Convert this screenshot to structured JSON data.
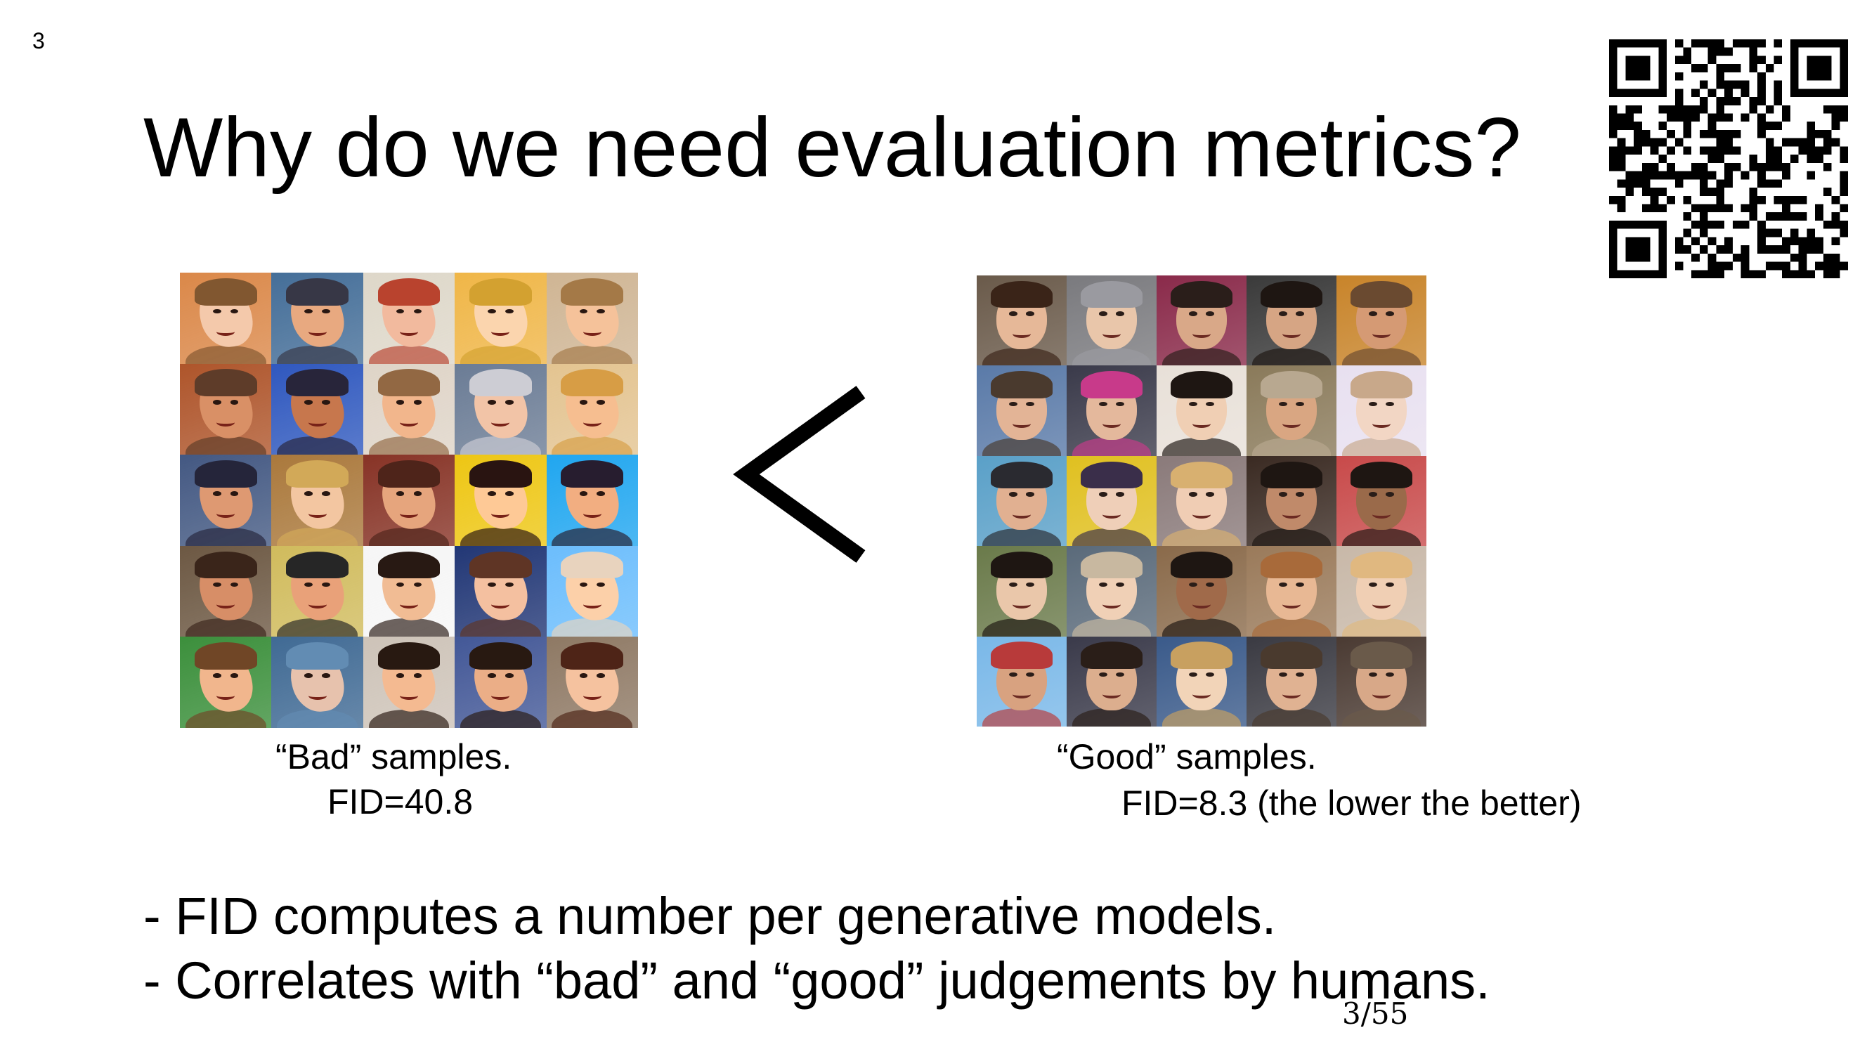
{
  "slide_number": "3",
  "title": "Why do we need evaluation metrics?",
  "comparison_symbol": "<",
  "bad_samples": {
    "caption_line1": "“Bad” samples.",
    "caption_line2": "FID=40.8"
  },
  "good_samples": {
    "caption_line1": "“Good” samples.",
    "caption_line2": "FID=8.3 (the lower the better)"
  },
  "bullets": [
    "- FID computes a number per generative models.",
    "- Correlates with “bad” and “good” judgements by humans."
  ],
  "page_counter": "3/55",
  "icons": {
    "qr": "qr-code-icon",
    "less_than": "less-than-symbol"
  },
  "colors": {
    "text": "#000000",
    "background": "#ffffff"
  },
  "bad_face_palette": [
    [
      "#e8c7b0",
      "#7a5a3c",
      "#c98a5a"
    ],
    [
      "#d9a98a",
      "#3b3b46",
      "#4e6e8e"
    ],
    [
      "#e4b9a4",
      "#a44a3a",
      "#d8d3c8"
    ],
    [
      "#efd2b4",
      "#c6a04a",
      "#e0b460"
    ],
    [
      "#e7c0a2",
      "#9b7a54",
      "#c7b39a"
    ],
    [
      "#c99272",
      "#5a4032",
      "#9e5a3a"
    ],
    [
      "#b77a5a",
      "#2c2a3a",
      "#3b5aa8"
    ],
    [
      "#e3b595",
      "#8a6a4e",
      "#d8d0c6"
    ],
    [
      "#e5c2ac",
      "#c9c9cf",
      "#6f7c8f"
    ],
    [
      "#e7bd9a",
      "#c99d5a",
      "#d9c19a"
    ],
    [
      "#cf9a7c",
      "#2a2a3a",
      "#4a5a7a"
    ],
    [
      "#e6c4a8",
      "#c7a86a",
      "#a07a4c"
    ],
    [
      "#d7a587",
      "#4a2a22",
      "#7a3a30"
    ],
    [
      "#efc7a0",
      "#2a1a18",
      "#e0c23a"
    ],
    [
      "#e2ae8c",
      "#2a2230",
      "#3aa0d8"
    ],
    [
      "#c79072",
      "#3a2a22",
      "#6a5a4a"
    ],
    [
      "#d9a283",
      "#2a2a2a",
      "#c8b870"
    ],
    [
      "#e3bb9c",
      "#2a1e1a",
      "#f0f0f0"
    ],
    [
      "#e6bfa6",
      "#5a3a2e",
      "#2a3a6a"
    ],
    [
      "#efcdb0",
      "#e0d0c0",
      "#7ab8e8"
    ],
    [
      "#e2b596",
      "#6a4a32",
      "#4a8a4a"
    ],
    [
      "#dcc0b0",
      "#6a8aa8",
      "#4a6a8a"
    ],
    [
      "#e5b99a",
      "#2a1e18",
      "#c8c0b8"
    ],
    [
      "#dcae90",
      "#2a1e18",
      "#4a5a8a"
    ],
    [
      "#e7c0a6",
      "#4a2a20",
      "#8a7a6a"
    ]
  ],
  "good_face_palette": [
    [
      "#e6b898",
      "#3a2418",
      "#6a5a4a"
    ],
    [
      "#e9c6aa",
      "#9a9aa0",
      "#7a7a7e"
    ],
    [
      "#d9a888",
      "#2a1e1a",
      "#8a2a4a"
    ],
    [
      "#d6a584",
      "#1e1612",
      "#3a3a3a"
    ],
    [
      "#d59a74",
      "#6a4a30",
      "#c8842a"
    ],
    [
      "#e3b496",
      "#4a3a2e",
      "#5a7aa8"
    ],
    [
      "#e4b89c",
      "#c83a8a",
      "#3a3a4a"
    ],
    [
      "#f0cfb4",
      "#1e1612",
      "#e8e0d8"
    ],
    [
      "#d9a682",
      "#b8a890",
      "#8a7a5a"
    ],
    [
      "#f2d6c4",
      "#c8a88a",
      "#e8e0f0"
    ],
    [
      "#e1b091",
      "#2a2a30",
      "#5aa0c8"
    ],
    [
      "#efcfb8",
      "#3a2e4a",
      "#e0c020"
    ],
    [
      "#f0cdb4",
      "#d8b070",
      "#8a7a7a"
    ],
    [
      "#c08a6a",
      "#1e1612",
      "#3a2a22"
    ],
    [
      "#9a6a4a",
      "#1e1612",
      "#c84a4a"
    ],
    [
      "#eac7aa",
      "#1e1612",
      "#6a7a4a"
    ],
    [
      "#f0d0b6",
      "#c8b8a0",
      "#5a6a7a"
    ],
    [
      "#a06a4a",
      "#1e1612",
      "#8a6a4a"
    ],
    [
      "#e8b894",
      "#a86a3a",
      "#9a7a5a"
    ],
    [
      "#f0cfb4",
      "#e0b880",
      "#c8b8a8"
    ],
    [
      "#d8a280",
      "#b83a3a",
      "#7ab8e8"
    ],
    [
      "#dcae8e",
      "#2a1e18",
      "#3a3a4a"
    ],
    [
      "#f2d4b8",
      "#c8a060",
      "#3a5a8a"
    ],
    [
      "#e0b292",
      "#4a3a2e",
      "#3a3a42"
    ],
    [
      "#d8a888",
      "#6a5a4a",
      "#4a3a32"
    ]
  ]
}
